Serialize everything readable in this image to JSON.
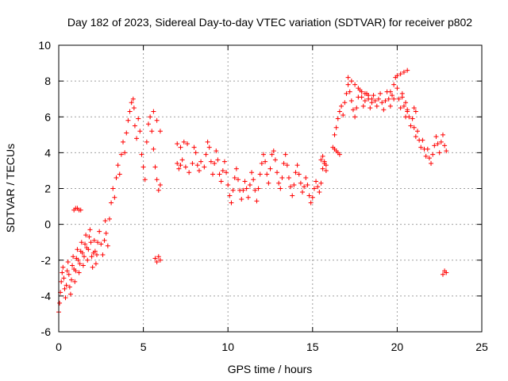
{
  "chart_data": {
    "type": "scatter",
    "title": "Day 182 of 2023, Sidereal Day-to-day VTEC variation (SDTVAR) for receiver p802",
    "xlabel": "GPS time / hours",
    "ylabel": "SDTVAR / TECUs",
    "xlim": [
      0,
      25
    ],
    "ylim": [
      -6,
      10
    ],
    "xticks": [
      0,
      5,
      10,
      15,
      20,
      25
    ],
    "yticks": [
      -6,
      -4,
      -2,
      0,
      2,
      4,
      6,
      8,
      10
    ],
    "grid": true,
    "marker": "+",
    "series": [
      {
        "name": "SDTVAR",
        "color": "#ff0000",
        "points": [
          [
            0.0,
            -4.9
          ],
          [
            0.05,
            -4.4
          ],
          [
            0.1,
            -3.8
          ],
          [
            0.15,
            -3.2
          ],
          [
            0.2,
            -2.7
          ],
          [
            0.25,
            -2.4
          ],
          [
            0.3,
            -3.0
          ],
          [
            0.35,
            -3.6
          ],
          [
            0.4,
            -4.1
          ],
          [
            0.45,
            -3.4
          ],
          [
            0.5,
            -2.6
          ],
          [
            0.55,
            -2.1
          ],
          [
            0.6,
            -2.8
          ],
          [
            0.65,
            -3.5
          ],
          [
            0.7,
            -3.9
          ],
          [
            0.75,
            -3.1
          ],
          [
            0.8,
            -2.3
          ],
          [
            0.85,
            -1.8
          ],
          [
            0.9,
            -2.5
          ],
          [
            0.95,
            -3.2
          ],
          [
            1.0,
            -2.6
          ],
          [
            1.05,
            -1.9
          ],
          [
            1.1,
            -1.4
          ],
          [
            1.15,
            -2.0
          ],
          [
            1.2,
            -2.7
          ],
          [
            1.25,
            -2.2
          ],
          [
            1.3,
            -1.5
          ],
          [
            1.35,
            -1.0
          ],
          [
            1.4,
            -1.6
          ],
          [
            1.45,
            -2.3
          ],
          [
            1.5,
            -1.8
          ],
          [
            1.55,
            -1.1
          ],
          [
            1.6,
            -0.6
          ],
          [
            1.65,
            -1.3
          ],
          [
            1.7,
            -2.0
          ],
          [
            1.75,
            -1.4
          ],
          [
            1.8,
            -0.7
          ],
          [
            1.85,
            -0.3
          ],
          [
            1.9,
            -1.0
          ],
          [
            1.95,
            -1.8
          ],
          [
            2.0,
            -2.4
          ],
          [
            2.05,
            -1.6
          ],
          [
            2.1,
            -0.9
          ],
          [
            2.15,
            -1.5
          ],
          [
            2.2,
            -2.2
          ],
          [
            2.25,
            -1.7
          ],
          [
            2.3,
            -1.0
          ],
          [
            2.4,
            -0.4
          ],
          [
            2.5,
            -1.1
          ],
          [
            2.6,
            -1.7
          ],
          [
            2.7,
            -0.9
          ],
          [
            2.75,
            0.2
          ],
          [
            2.8,
            -0.5
          ],
          [
            2.9,
            -1.2
          ],
          [
            3.0,
            0.3
          ],
          [
            3.1,
            1.2
          ],
          [
            3.2,
            2.0
          ],
          [
            3.3,
            1.5
          ],
          [
            3.4,
            2.6
          ],
          [
            3.5,
            3.3
          ],
          [
            3.6,
            2.8
          ],
          [
            3.7,
            3.9
          ],
          [
            3.8,
            4.6
          ],
          [
            3.9,
            4.0
          ],
          [
            4.0,
            5.1
          ],
          [
            4.1,
            5.8
          ],
          [
            4.2,
            6.3
          ],
          [
            4.3,
            6.8
          ],
          [
            4.4,
            7.0
          ],
          [
            4.45,
            6.5
          ],
          [
            4.5,
            5.5
          ],
          [
            4.6,
            4.8
          ],
          [
            4.7,
            5.9
          ],
          [
            4.8,
            5.2
          ],
          [
            4.9,
            3.9
          ],
          [
            5.0,
            3.2
          ],
          [
            5.1,
            2.5
          ],
          [
            5.2,
            4.6
          ],
          [
            5.3,
            5.6
          ],
          [
            5.4,
            6.0
          ],
          [
            5.5,
            5.2
          ],
          [
            5.6,
            4.2
          ],
          [
            5.7,
            3.2
          ],
          [
            5.8,
            2.5
          ],
          [
            5.9,
            1.9
          ],
          [
            6.0,
            2.2
          ],
          [
            5.6,
            6.3
          ],
          [
            5.8,
            5.8
          ],
          [
            6.0,
            5.2
          ],
          [
            5.7,
            -1.9
          ],
          [
            5.8,
            -2.1
          ],
          [
            5.9,
            -1.8
          ],
          [
            6.0,
            -2.0
          ],
          [
            0.9,
            0.8
          ],
          [
            1.0,
            0.9
          ],
          [
            1.1,
            0.9
          ],
          [
            1.2,
            0.8
          ],
          [
            1.3,
            0.8
          ],
          [
            7.0,
            3.4
          ],
          [
            7.1,
            3.1
          ],
          [
            7.2,
            3.3
          ],
          [
            7.0,
            4.5
          ],
          [
            7.2,
            4.3
          ],
          [
            7.4,
            4.6
          ],
          [
            7.6,
            4.5
          ],
          [
            7.3,
            3.6
          ],
          [
            7.5,
            3.2
          ],
          [
            7.7,
            2.9
          ],
          [
            7.9,
            3.4
          ],
          [
            8.0,
            4.3
          ],
          [
            8.1,
            4.0
          ],
          [
            8.2,
            3.3
          ],
          [
            8.3,
            3.0
          ],
          [
            8.4,
            3.5
          ],
          [
            8.6,
            3.2
          ],
          [
            8.7,
            3.9
          ],
          [
            8.8,
            4.6
          ],
          [
            8.9,
            4.3
          ],
          [
            9.0,
            3.5
          ],
          [
            9.1,
            2.8
          ],
          [
            9.2,
            3.4
          ],
          [
            9.3,
            4.1
          ],
          [
            9.4,
            3.6
          ],
          [
            9.5,
            2.8
          ],
          [
            9.6,
            2.4
          ],
          [
            9.7,
            3.0
          ],
          [
            9.8,
            3.5
          ],
          [
            9.9,
            2.9
          ],
          [
            10.0,
            2.2
          ],
          [
            10.1,
            1.6
          ],
          [
            10.2,
            1.2
          ],
          [
            10.3,
            1.9
          ],
          [
            10.4,
            2.6
          ],
          [
            10.5,
            3.1
          ],
          [
            10.6,
            2.5
          ],
          [
            10.7,
            1.9
          ],
          [
            10.8,
            1.4
          ],
          [
            10.9,
            1.9
          ],
          [
            11.0,
            2.4
          ],
          [
            11.1,
            2.0
          ],
          [
            11.2,
            1.5
          ],
          [
            11.3,
            2.2
          ],
          [
            11.4,
            2.9
          ],
          [
            11.5,
            2.5
          ],
          [
            11.6,
            1.9
          ],
          [
            11.7,
            1.3
          ],
          [
            11.8,
            2.0
          ],
          [
            11.9,
            2.8
          ],
          [
            12.0,
            3.4
          ],
          [
            12.1,
            3.9
          ],
          [
            12.2,
            3.5
          ],
          [
            12.3,
            2.8
          ],
          [
            12.4,
            2.3
          ],
          [
            12.5,
            3.1
          ],
          [
            12.6,
            3.9
          ],
          [
            12.7,
            4.1
          ],
          [
            12.8,
            3.6
          ],
          [
            12.9,
            2.9
          ],
          [
            13.0,
            2.3
          ],
          [
            13.1,
            2.0
          ],
          [
            13.2,
            2.6
          ],
          [
            13.3,
            3.4
          ],
          [
            13.4,
            3.9
          ],
          [
            13.5,
            3.3
          ],
          [
            13.6,
            2.6
          ],
          [
            13.7,
            2.1
          ],
          [
            13.8,
            1.6
          ],
          [
            13.9,
            2.2
          ],
          [
            14.0,
            2.9
          ],
          [
            14.1,
            3.3
          ],
          [
            14.2,
            2.8
          ],
          [
            14.3,
            2.3
          ],
          [
            14.4,
            1.8
          ],
          [
            14.5,
            2.1
          ],
          [
            14.6,
            2.6
          ],
          [
            14.7,
            2.2
          ],
          [
            14.8,
            1.6
          ],
          [
            14.9,
            1.2
          ],
          [
            15.0,
            1.5
          ],
          [
            15.1,
            2.0
          ],
          [
            15.2,
            2.4
          ],
          [
            15.3,
            2.1
          ],
          [
            15.4,
            1.8
          ],
          [
            15.5,
            2.3
          ],
          [
            15.6,
            3.1
          ],
          [
            15.7,
            3.4
          ],
          [
            15.8,
            3.0
          ],
          [
            16.2,
            4.3
          ],
          [
            16.3,
            4.2
          ],
          [
            16.4,
            4.1
          ],
          [
            16.5,
            4.0
          ],
          [
            16.6,
            3.9
          ],
          [
            16.3,
            5.0
          ],
          [
            16.4,
            5.4
          ],
          [
            16.5,
            5.9
          ],
          [
            16.6,
            6.3
          ],
          [
            16.7,
            6.6
          ],
          [
            16.8,
            6.1
          ],
          [
            16.9,
            6.8
          ],
          [
            17.0,
            7.3
          ],
          [
            17.1,
            7.8
          ],
          [
            17.2,
            7.4
          ],
          [
            17.3,
            6.9
          ],
          [
            17.4,
            6.4
          ],
          [
            17.5,
            6.0
          ],
          [
            17.6,
            6.5
          ],
          [
            17.7,
            7.1
          ],
          [
            17.8,
            7.5
          ],
          [
            17.9,
            7.1
          ],
          [
            18.0,
            6.6
          ],
          [
            18.1,
            6.9
          ],
          [
            18.2,
            7.3
          ],
          [
            18.3,
            7.0
          ],
          [
            18.4,
            6.5
          ],
          [
            18.5,
            6.8
          ],
          [
            18.6,
            7.2
          ],
          [
            18.7,
            6.9
          ],
          [
            18.8,
            6.6
          ],
          [
            18.9,
            7.0
          ],
          [
            19.0,
            7.3
          ],
          [
            19.1,
            6.8
          ],
          [
            19.2,
            6.4
          ],
          [
            19.3,
            6.9
          ],
          [
            19.4,
            7.4
          ],
          [
            19.5,
            7.0
          ],
          [
            19.6,
            6.6
          ],
          [
            19.7,
            7.2
          ],
          [
            19.8,
            7.8
          ],
          [
            19.9,
            8.2
          ],
          [
            20.0,
            7.6
          ],
          [
            20.1,
            7.0
          ],
          [
            20.2,
            6.5
          ],
          [
            20.3,
            7.1
          ],
          [
            20.4,
            6.6
          ],
          [
            20.5,
            6.0
          ],
          [
            20.6,
            6.3
          ],
          [
            20.7,
            6.0
          ],
          [
            20.8,
            5.5
          ],
          [
            20.9,
            5.9
          ],
          [
            21.0,
            5.4
          ],
          [
            21.1,
            4.9
          ],
          [
            21.2,
            5.2
          ],
          [
            21.3,
            4.7
          ],
          [
            21.4,
            4.3
          ],
          [
            21.5,
            4.7
          ],
          [
            21.6,
            4.2
          ],
          [
            21.7,
            3.8
          ],
          [
            21.8,
            4.2
          ],
          [
            21.9,
            3.7
          ],
          [
            22.0,
            3.4
          ],
          [
            22.1,
            3.9
          ],
          [
            22.2,
            4.4
          ],
          [
            22.3,
            4.9
          ],
          [
            22.4,
            4.5
          ],
          [
            22.5,
            4.0
          ],
          [
            22.6,
            4.6
          ],
          [
            22.7,
            5.0
          ],
          [
            22.8,
            4.4
          ],
          [
            22.9,
            4.1
          ],
          [
            17.1,
            8.2
          ],
          [
            17.3,
            8.0
          ],
          [
            17.5,
            7.8
          ],
          [
            17.7,
            7.6
          ],
          [
            17.9,
            7.4
          ],
          [
            18.1,
            7.3
          ],
          [
            18.3,
            7.2
          ],
          [
            18.5,
            7.0
          ],
          [
            19.6,
            7.4
          ],
          [
            19.8,
            7.0
          ],
          [
            20.0,
            8.3
          ],
          [
            20.2,
            8.4
          ],
          [
            20.4,
            8.5
          ],
          [
            20.6,
            8.6
          ],
          [
            20.3,
            7.3
          ],
          [
            20.5,
            6.8
          ],
          [
            20.6,
            6.4
          ],
          [
            21.0,
            6.5
          ],
          [
            21.1,
            6.3
          ],
          [
            22.7,
            -2.8
          ],
          [
            22.8,
            -2.6
          ],
          [
            22.9,
            -2.7
          ],
          [
            15.5,
            3.6
          ],
          [
            15.6,
            3.8
          ],
          [
            15.7,
            3.5
          ],
          [
            15.8,
            3.3
          ]
        ]
      }
    ]
  }
}
